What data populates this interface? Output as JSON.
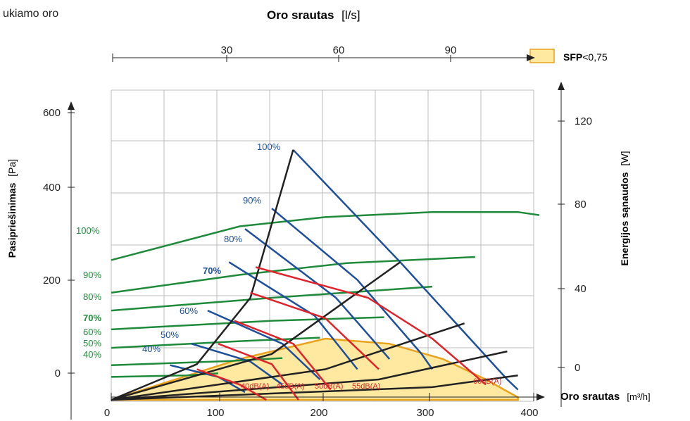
{
  "page": {
    "corner_text": "ukiamo oro"
  },
  "chart_data": {
    "type": "line",
    "title_top": "Oro srautas",
    "title_top_unit": "[l/s]",
    "title_top_parts": [
      "Oro srautas ",
      "[",
      "l",
      "/s]"
    ],
    "top_axis_ticks": [
      30,
      60,
      90
    ],
    "legend": {
      "label": "SFP",
      "suffix": "<0,75",
      "color": "#ffe9a0"
    },
    "bottom_axis": {
      "label": "Oro srautas",
      "unit": "[m³/h]",
      "ticks": [
        0,
        100,
        200,
        300,
        400
      ],
      "xlim": [
        0,
        400
      ]
    },
    "left_axis": {
      "label": "Pasipriešinimas",
      "unit": "[Pa]",
      "ticks": [
        0,
        200,
        400,
        600
      ]
    },
    "right_axis": {
      "label": "Energijos sąnaudos",
      "unit": "[W]",
      "ticks": [
        0,
        40,
        80,
        120
      ]
    },
    "grid": true,
    "power_curves": {
      "color": "#1e8a3a",
      "labels": [
        "100%",
        "90%",
        "80%",
        "70%",
        "60%",
        "50%",
        "40%"
      ],
      "series": [
        {
          "name": "100%",
          "points": [
            [
              0,
              274
            ],
            [
              120,
              340
            ],
            [
              200,
              358
            ],
            [
              300,
              368
            ],
            [
              380,
              368
            ],
            [
              400,
              362
            ]
          ]
        },
        {
          "name": "90%",
          "points": [
            [
              0,
              210
            ],
            [
              120,
              245
            ],
            [
              220,
              268
            ],
            [
              340,
              280
            ]
          ]
        },
        {
          "name": "80%",
          "points": [
            [
              0,
              175
            ],
            [
              150,
              200
            ],
            [
              300,
              222
            ]
          ]
        },
        {
          "name": "70%",
          "points": [
            [
              0,
              138
            ],
            [
              150,
              155
            ],
            [
              255,
              162
            ]
          ]
        },
        {
          "name": "60%",
          "points": [
            [
              0,
              102
            ],
            [
              120,
              115
            ],
            [
              195,
              122
            ]
          ]
        },
        {
          "name": "50%",
          "points": [
            [
              0,
              68
            ],
            [
              110,
              76
            ],
            [
              160,
              82
            ]
          ]
        },
        {
          "name": "40%",
          "points": [
            [
              0,
              45
            ],
            [
              70,
              48
            ],
            [
              100,
              52
            ]
          ]
        }
      ]
    },
    "fan_curves": {
      "color": "#1d4f9a",
      "labels": [
        "100%",
        "90%",
        "80%",
        "70%",
        "60%",
        "50%",
        "40%"
      ],
      "series": [
        {
          "name": "100%",
          "points": [
            [
              170,
              490
            ],
            [
              270,
              270
            ],
            [
              370,
              40
            ],
            [
              380,
              20
            ]
          ]
        },
        {
          "name": "90%",
          "points": [
            [
              150,
              375
            ],
            [
              230,
              235
            ],
            [
              290,
              90
            ],
            [
              300,
              60
            ]
          ]
        },
        {
          "name": "80%",
          "points": [
            [
              125,
              335
            ],
            [
              210,
              200
            ],
            [
              260,
              80
            ]
          ]
        },
        {
          "name": "70%",
          "points": [
            [
              110,
              270
            ],
            [
              190,
              165
            ],
            [
              230,
              60
            ]
          ]
        },
        {
          "name": "60%",
          "points": [
            [
              90,
              175
            ],
            [
              160,
              110
            ],
            [
              195,
              40
            ]
          ]
        },
        {
          "name": "50%",
          "points": [
            [
              75,
              110
            ],
            [
              130,
              75
            ],
            [
              160,
              30
            ]
          ]
        },
        {
          "name": "40%",
          "points": [
            [
              55,
              68
            ],
            [
              100,
              45
            ],
            [
              125,
              15
            ]
          ]
        }
      ]
    },
    "system_curves": {
      "color": "#222222",
      "series": [
        {
          "points": [
            [
              0,
              0
            ],
            [
              80,
              70
            ],
            [
              130,
              200
            ],
            [
              170,
              490
            ]
          ]
        },
        {
          "points": [
            [
              0,
              0
            ],
            [
              150,
              90
            ],
            [
              270,
              270
            ]
          ]
        },
        {
          "points": [
            [
              0,
              0
            ],
            [
              200,
              60
            ],
            [
              330,
              150
            ]
          ]
        },
        {
          "points": [
            [
              0,
              0
            ],
            [
              250,
              40
            ],
            [
              370,
              95
            ]
          ]
        },
        {
          "points": [
            [
              0,
              0
            ],
            [
              300,
              25
            ],
            [
              380,
              48
            ]
          ]
        }
      ]
    },
    "noise_curves": {
      "color": "#e0232a",
      "labels": [
        "40dB(A)",
        "45dB(A)",
        "50dB(A)",
        "55dB(A)",
        "60dB(A)"
      ],
      "series": [
        {
          "points": [
            [
              80,
              60
            ],
            [
              120,
              30
            ],
            [
              145,
              0
            ]
          ]
        },
        {
          "points": [
            [
              100,
              110
            ],
            [
              150,
              70
            ],
            [
              175,
              0
            ]
          ]
        },
        {
          "points": [
            [
              115,
              155
            ],
            [
              170,
              110
            ],
            [
              205,
              20
            ]
          ]
        },
        {
          "points": [
            [
              130,
              210
            ],
            [
              200,
              160
            ],
            [
              250,
              60
            ]
          ]
        },
        {
          "points": [
            [
              135,
              260
            ],
            [
              240,
              200
            ],
            [
              300,
              120
            ],
            [
              350,
              30
            ]
          ]
        }
      ]
    },
    "sfp_region": {
      "color": "#ffe9a0",
      "points": [
        [
          0,
          0
        ],
        [
          60,
          40
        ],
        [
          120,
          80
        ],
        [
          200,
          120
        ],
        [
          260,
          110
        ],
        [
          310,
          80
        ],
        [
          350,
          40
        ],
        [
          380,
          5
        ],
        [
          380,
          0
        ]
      ]
    },
    "annotation": {
      "text": "70%",
      "bold": true
    }
  }
}
